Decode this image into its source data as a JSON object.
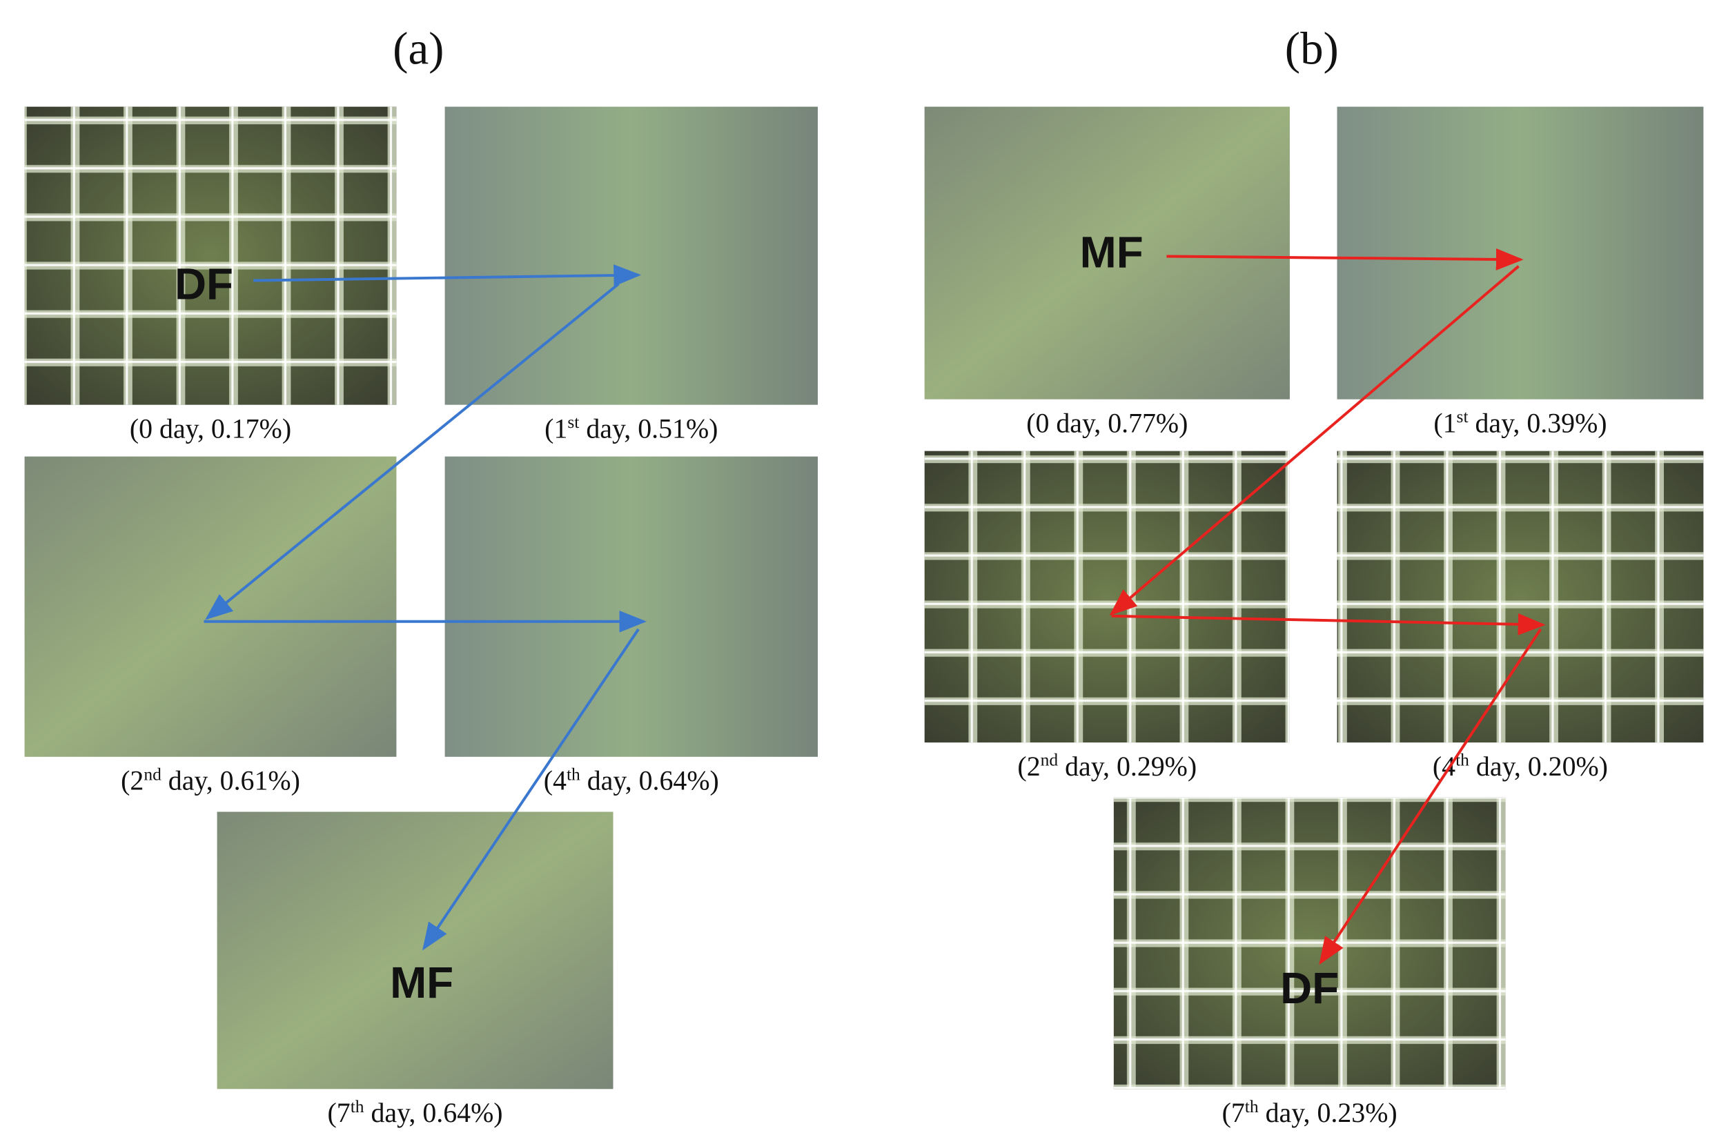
{
  "panels": [
    {
      "label": "(a)",
      "start": "DF",
      "end": "MF",
      "images": [
        {
          "caption": {
            "before": "(0 day, 0.17%)"
          }
        },
        {
          "caption": {
            "before": "(1",
            "sup": "st",
            "after": " day, 0.51%)"
          }
        },
        {
          "caption": {
            "before": "(2",
            "sup": "nd",
            "after": " day, 0.61%)"
          }
        },
        {
          "caption": {
            "before": "(4",
            "sup": "th",
            "after": " day, 0.64%)"
          }
        },
        {
          "caption": {
            "before": "(7",
            "sup": "th",
            "after": " day, 0.64%)"
          }
        }
      ]
    },
    {
      "label": "(b)",
      "start": "MF",
      "end": "DF",
      "images": [
        {
          "caption": {
            "before": "(0 day, 0.77%)"
          }
        },
        {
          "caption": {
            "before": "(1",
            "sup": "st",
            "after": " day, 0.39%)"
          }
        },
        {
          "caption": {
            "before": "(2",
            "sup": "nd",
            "after": " day, 0.29%)"
          }
        },
        {
          "caption": {
            "before": "(4",
            "sup": "th",
            "after": " day, 0.20%)"
          }
        },
        {
          "caption": {
            "before": "(7",
            "sup": "th",
            "after": " day, 0.23%)"
          }
        }
      ]
    }
  ]
}
